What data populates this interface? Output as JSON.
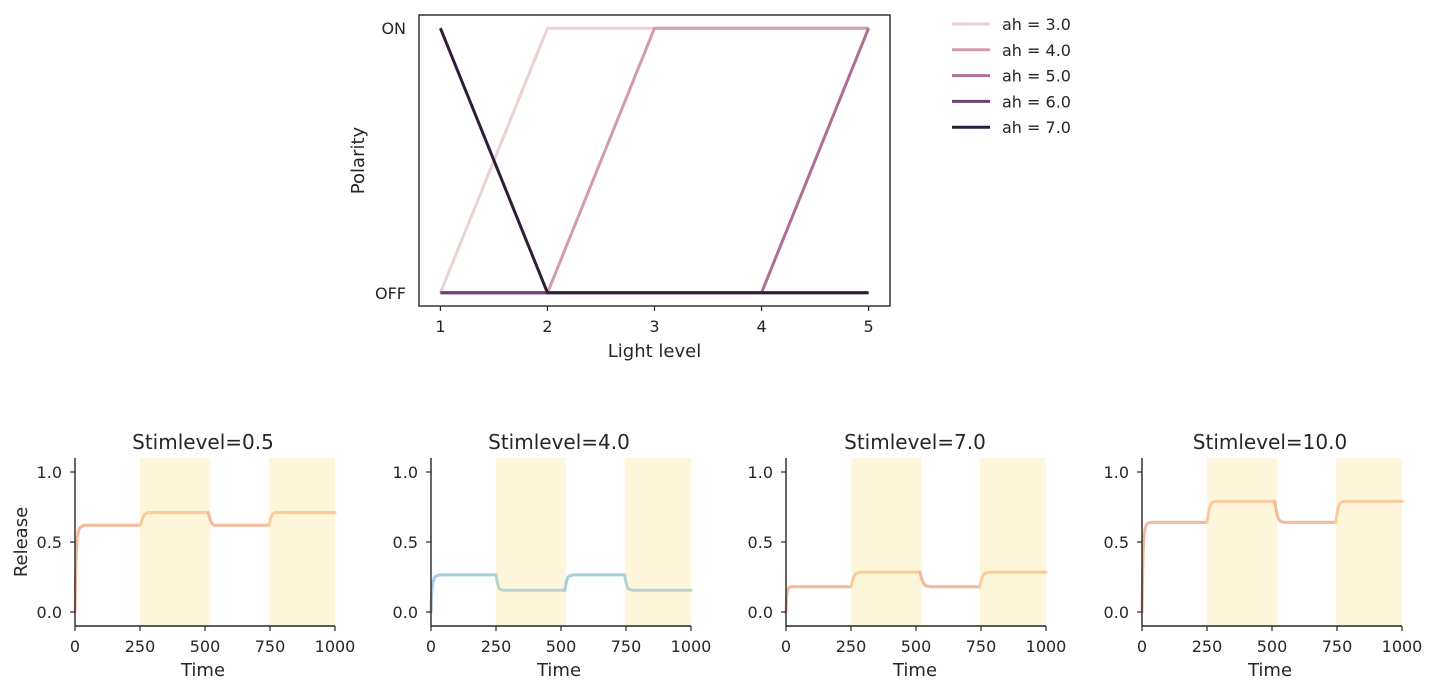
{
  "chart_data": [
    {
      "type": "line",
      "title": "",
      "xlabel": "Light level",
      "ylabel": "Polarity",
      "x": [
        1,
        2,
        3,
        4,
        5
      ],
      "xlim": [
        0.8,
        5.2
      ],
      "ylim": [
        -0.05,
        1.05
      ],
      "y_tick_labels": [
        {
          "value": 0,
          "label": "OFF"
        },
        {
          "value": 1,
          "label": "ON"
        }
      ],
      "x_tick_labels": [
        "1",
        "2",
        "3",
        "4",
        "5"
      ],
      "grid": false,
      "legend_placement": "outside-right-top",
      "series": [
        {
          "name": "ah = 3.0",
          "color": "#ebd2d0",
          "values": [
            0,
            1,
            1,
            1,
            1
          ]
        },
        {
          "name": "ah = 4.0",
          "color": "#d29ca8",
          "values": [
            0,
            0,
            1,
            1,
            1
          ]
        },
        {
          "name": "ah = 5.0",
          "color": "#ad6f93",
          "values": [
            0,
            0,
            0,
            0,
            1
          ]
        },
        {
          "name": "ah = 6.0",
          "color": "#6f4276",
          "values": [
            0,
            0,
            0,
            0,
            0
          ]
        },
        {
          "name": "ah = 7.0",
          "color": "#2e1e3b",
          "values": [
            1,
            0,
            0,
            0,
            0
          ]
        }
      ]
    },
    {
      "type": "line",
      "title": "Stimlevel=0.5",
      "xlabel": "Time",
      "ylabel": "Release",
      "xlim": [
        0,
        1000
      ],
      "ylim": [
        -0.1,
        1.1
      ],
      "x_ticks": [
        0,
        250,
        500,
        750,
        1000
      ],
      "y_ticks": [
        0.0,
        0.5,
        1.0
      ],
      "x_tick_labels": [
        "0",
        "250",
        "500",
        "750",
        "1000"
      ],
      "y_tick_labels": [
        "0.0",
        "0.5",
        "1.0"
      ],
      "shaded_intervals": [
        [
          250,
          520
        ],
        [
          745,
          1000
        ]
      ],
      "shade_color": "#fef6da",
      "grid": false,
      "segments": [
        {
          "color": "#f6b89c",
          "x": [
            0,
            1,
            2,
            3,
            5,
            8,
            12,
            18,
            25,
            35,
            50,
            80,
            120,
            200,
            250
          ],
          "y": [
            0.0,
            0.1,
            0.2,
            0.3,
            0.42,
            0.52,
            0.57,
            0.6,
            0.61,
            0.62,
            0.62,
            0.62,
            0.62,
            0.62,
            0.62
          ]
        },
        {
          "color": "#fbcb9c",
          "x": [
            250,
            255,
            260,
            265,
            270,
            280,
            300,
            400,
            500,
            512
          ],
          "y": [
            0.62,
            0.64,
            0.67,
            0.69,
            0.7,
            0.71,
            0.71,
            0.71,
            0.71,
            0.71
          ]
        },
        {
          "color": "#f6b89c",
          "x": [
            512,
            517,
            522,
            527,
            535,
            550,
            600,
            700,
            745
          ],
          "y": [
            0.71,
            0.68,
            0.65,
            0.63,
            0.62,
            0.62,
            0.62,
            0.62,
            0.62
          ]
        },
        {
          "color": "#fbcb9c",
          "x": [
            745,
            750,
            755,
            760,
            768,
            780,
            800,
            900,
            1000
          ],
          "y": [
            0.62,
            0.65,
            0.68,
            0.7,
            0.71,
            0.71,
            0.71,
            0.71,
            0.71
          ]
        }
      ]
    },
    {
      "type": "line",
      "title": "Stimlevel=4.0",
      "xlabel": "Time",
      "ylabel": "",
      "xlim": [
        0,
        1000
      ],
      "ylim": [
        -0.1,
        1.1
      ],
      "x_ticks": [
        0,
        250,
        500,
        750,
        1000
      ],
      "y_ticks": [
        0.0,
        0.5,
        1.0
      ],
      "x_tick_labels": [
        "0",
        "250",
        "500",
        "750",
        "1000"
      ],
      "y_tick_labels": [
        "0.0",
        "0.5",
        "1.0"
      ],
      "shaded_intervals": [
        [
          250,
          520
        ],
        [
          745,
          1000
        ]
      ],
      "shade_color": "#fef6da",
      "grid": false,
      "segments": [
        {
          "color": "#a8cbe0",
          "x": [
            0,
            1,
            2,
            4,
            7,
            12,
            18,
            25,
            35,
            50,
            100,
            200,
            250
          ],
          "y": [
            0.0,
            0.06,
            0.11,
            0.17,
            0.21,
            0.24,
            0.255,
            0.26,
            0.265,
            0.265,
            0.265,
            0.265,
            0.265
          ]
        },
        {
          "color": "#b8d2cf",
          "x": [
            250,
            254,
            258,
            262,
            268,
            278,
            300,
            400,
            500,
            515
          ],
          "y": [
            0.265,
            0.22,
            0.19,
            0.17,
            0.16,
            0.155,
            0.155,
            0.155,
            0.155,
            0.155
          ]
        },
        {
          "color": "#a8cbe0",
          "x": [
            515,
            519,
            523,
            527,
            535,
            550,
            600,
            700,
            745
          ],
          "y": [
            0.155,
            0.2,
            0.23,
            0.25,
            0.26,
            0.265,
            0.265,
            0.265,
            0.265
          ]
        },
        {
          "color": "#b8d2cf",
          "x": [
            745,
            749,
            753,
            757,
            765,
            780,
            800,
            900,
            1000
          ],
          "y": [
            0.265,
            0.22,
            0.19,
            0.17,
            0.16,
            0.155,
            0.155,
            0.155,
            0.155
          ]
        }
      ]
    },
    {
      "type": "line",
      "title": "Stimlevel=7.0",
      "xlabel": "Time",
      "ylabel": "",
      "xlim": [
        0,
        1000
      ],
      "ylim": [
        -0.1,
        1.1
      ],
      "x_ticks": [
        0,
        250,
        500,
        750,
        1000
      ],
      "y_ticks": [
        0.0,
        0.5,
        1.0
      ],
      "x_tick_labels": [
        "0",
        "250",
        "500",
        "750",
        "1000"
      ],
      "y_tick_labels": [
        "0.0",
        "0.5",
        "1.0"
      ],
      "shaded_intervals": [
        [
          250,
          520
        ],
        [
          745,
          1000
        ]
      ],
      "shade_color": "#fef6da",
      "grid": false,
      "segments": [
        {
          "color": "#f6b89c",
          "x": [
            0,
            1,
            2,
            4,
            7,
            12,
            18,
            25,
            35,
            50,
            100,
            200,
            250
          ],
          "y": [
            0.0,
            0.05,
            0.09,
            0.13,
            0.16,
            0.175,
            0.18,
            0.18,
            0.18,
            0.18,
            0.18,
            0.18,
            0.18
          ]
        },
        {
          "color": "#fbcb9c",
          "x": [
            250,
            255,
            260,
            266,
            275,
            290,
            350,
            450,
            515
          ],
          "y": [
            0.18,
            0.22,
            0.25,
            0.27,
            0.28,
            0.285,
            0.285,
            0.285,
            0.285
          ]
        },
        {
          "color": "#f6b89c",
          "x": [
            515,
            520,
            525,
            530,
            540,
            560,
            650,
            745
          ],
          "y": [
            0.285,
            0.25,
            0.22,
            0.2,
            0.185,
            0.18,
            0.18,
            0.18
          ]
        },
        {
          "color": "#fbcb9c",
          "x": [
            745,
            750,
            755,
            761,
            770,
            785,
            850,
            950,
            1000
          ],
          "y": [
            0.18,
            0.22,
            0.25,
            0.27,
            0.28,
            0.285,
            0.285,
            0.285,
            0.285
          ]
        }
      ]
    },
    {
      "type": "line",
      "title": "Stimlevel=10.0",
      "xlabel": "Time",
      "ylabel": "",
      "xlim": [
        0,
        1000
      ],
      "ylim": [
        -0.1,
        1.1
      ],
      "x_ticks": [
        0,
        250,
        500,
        750,
        1000
      ],
      "y_ticks": [
        0.0,
        0.5,
        1.0
      ],
      "x_tick_labels": [
        "0",
        "250",
        "500",
        "750",
        "1000"
      ],
      "y_tick_labels": [
        "0.0",
        "0.5",
        "1.0"
      ],
      "shaded_intervals": [
        [
          250,
          520
        ],
        [
          745,
          1000
        ]
      ],
      "shade_color": "#fef6da",
      "grid": false,
      "segments": [
        {
          "color": "#f6b89c",
          "x": [
            0,
            1,
            2,
            3,
            5,
            8,
            12,
            18,
            25,
            35,
            50,
            100,
            200,
            250
          ],
          "y": [
            0.0,
            0.12,
            0.23,
            0.33,
            0.46,
            0.55,
            0.6,
            0.625,
            0.635,
            0.64,
            0.64,
            0.64,
            0.64,
            0.64
          ]
        },
        {
          "color": "#fbcb9c",
          "x": [
            250,
            255,
            260,
            265,
            272,
            285,
            320,
            420,
            510
          ],
          "y": [
            0.64,
            0.7,
            0.75,
            0.77,
            0.785,
            0.79,
            0.79,
            0.79,
            0.79
          ]
        },
        {
          "color": "#f6b89c",
          "x": [
            510,
            515,
            520,
            526,
            535,
            550,
            600,
            700,
            745
          ],
          "y": [
            0.79,
            0.74,
            0.69,
            0.66,
            0.645,
            0.64,
            0.64,
            0.64,
            0.64
          ]
        },
        {
          "color": "#fbcb9c",
          "x": [
            745,
            750,
            755,
            760,
            768,
            780,
            820,
            900,
            1000
          ],
          "y": [
            0.64,
            0.7,
            0.75,
            0.77,
            0.785,
            0.79,
            0.79,
            0.79,
            0.79
          ]
        }
      ]
    }
  ]
}
